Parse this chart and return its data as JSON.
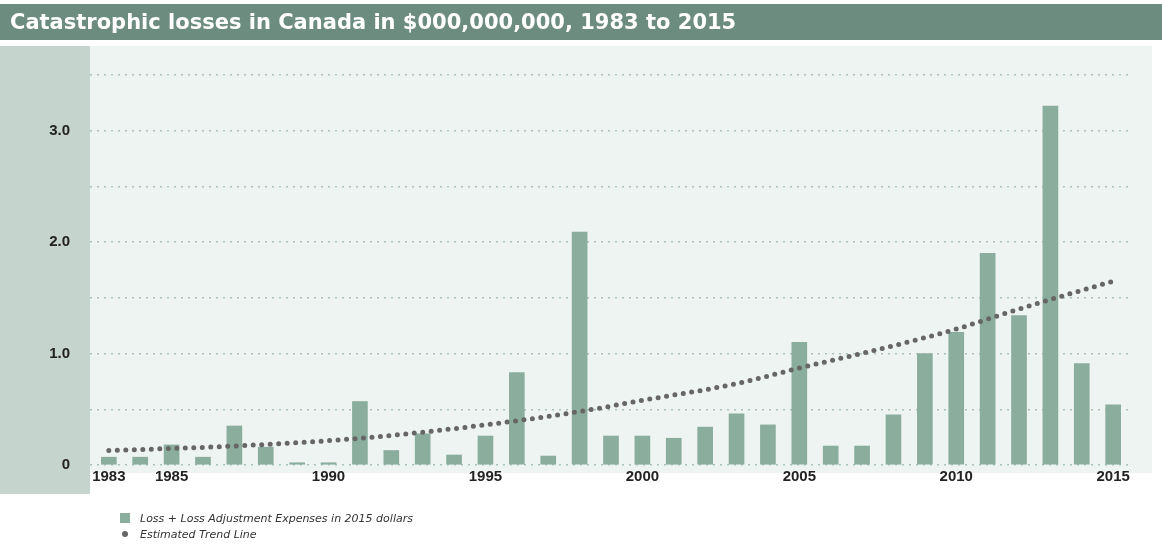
{
  "chart_data": {
    "type": "bar",
    "title": "Catastrophic losses in Canada in $000,000,000, 1983 to 2015",
    "x": [
      1983,
      1984,
      1985,
      1986,
      1987,
      1988,
      1989,
      1990,
      1991,
      1992,
      1993,
      1994,
      1995,
      1996,
      1997,
      1998,
      1999,
      2000,
      2001,
      2002,
      2003,
      2004,
      2005,
      2006,
      2007,
      2008,
      2009,
      2010,
      2011,
      2012,
      2013,
      2014,
      2015
    ],
    "xlim": [
      1982.4,
      2015.6
    ],
    "xticks": [
      1983,
      1985,
      1990,
      1995,
      2000,
      2005,
      2010,
      2015
    ],
    "ylim": [
      0,
      3.5
    ],
    "yticks": [
      {
        "value": 0,
        "label": "0"
      },
      {
        "value": 0.5,
        "label": null
      },
      {
        "value": 1,
        "label": "1.0"
      },
      {
        "value": 1.5,
        "label": null
      },
      {
        "value": 2,
        "label": "2.0"
      },
      {
        "value": 2.5,
        "label": null
      },
      {
        "value": 3,
        "label": "3.0"
      },
      {
        "value": 3.5,
        "label": null
      }
    ],
    "grid": "y",
    "legend": "bottom left",
    "series": [
      {
        "name": "Loss + Loss Adjustment Expenses in 2015 dollars",
        "color": "#8aad9e",
        "values": [
          0.07,
          0.07,
          0.18,
          0.07,
          0.35,
          0.16,
          0.02,
          0.02,
          0.57,
          0.13,
          0.28,
          0.09,
          0.26,
          0.83,
          0.08,
          2.09,
          0.26,
          0.26,
          0.24,
          0.34,
          0.46,
          0.36,
          1.1,
          0.17,
          0.17,
          0.45,
          1.0,
          1.19,
          1.9,
          1.34,
          3.22,
          0.91,
          0.54
        ]
      },
      {
        "name": "Estimated Trend Line",
        "type": "line",
        "color": "#666666",
        "line_style": "dotted",
        "marker": "none",
        "x": [
          1983,
          1987,
          1991,
          1995,
          1998,
          2000,
          2003,
          2005,
          2008,
          2010,
          2012,
          2015
        ],
        "values": [
          0.13,
          0.17,
          0.24,
          0.36,
          0.48,
          0.58,
          0.73,
          0.87,
          1.07,
          1.22,
          1.4,
          1.65
        ]
      }
    ]
  }
}
